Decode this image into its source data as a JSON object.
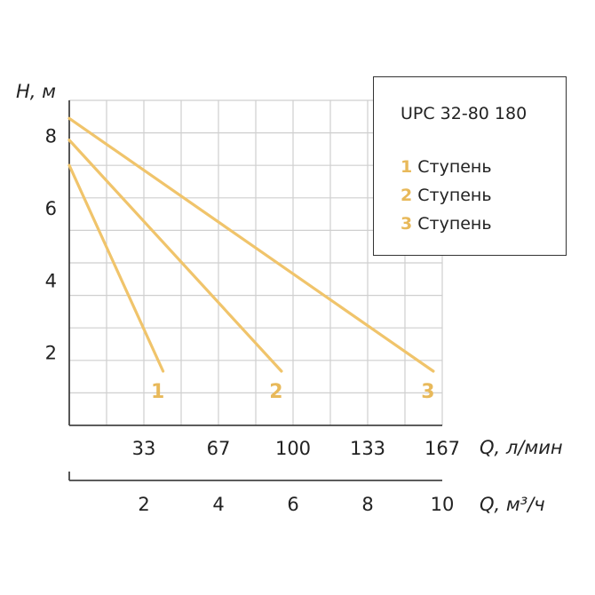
{
  "chart_data": {
    "type": "line",
    "title": "UPC 32-80 180",
    "ylabel": "H, м",
    "xlabel": "Q, л/мин",
    "x2label": "Q, м³/ч",
    "ylim": [
      0,
      9
    ],
    "yticks": [
      "2",
      "4",
      "6",
      "8"
    ],
    "xlim": [
      0,
      167
    ],
    "xticks": [
      "33",
      "67",
      "100",
      "133",
      "167"
    ],
    "x2lim": [
      0,
      10
    ],
    "x2ticks": [
      "2",
      "4",
      "6",
      "8",
      "10"
    ],
    "grid": true,
    "legend_position": "top-right",
    "series_color": "#F0C46B",
    "label_color": "#E8B95A",
    "series": [
      {
        "name": "1",
        "legend_label": "Ступень",
        "x": [
          0,
          42
        ],
        "y": [
          7.2,
          1.5
        ]
      },
      {
        "name": "2",
        "legend_label": "Ступень",
        "x": [
          0,
          95
        ],
        "y": [
          7.9,
          1.5
        ]
      },
      {
        "name": "3",
        "legend_label": "Ступень",
        "x": [
          0,
          163
        ],
        "y": [
          8.5,
          1.5
        ]
      }
    ]
  }
}
